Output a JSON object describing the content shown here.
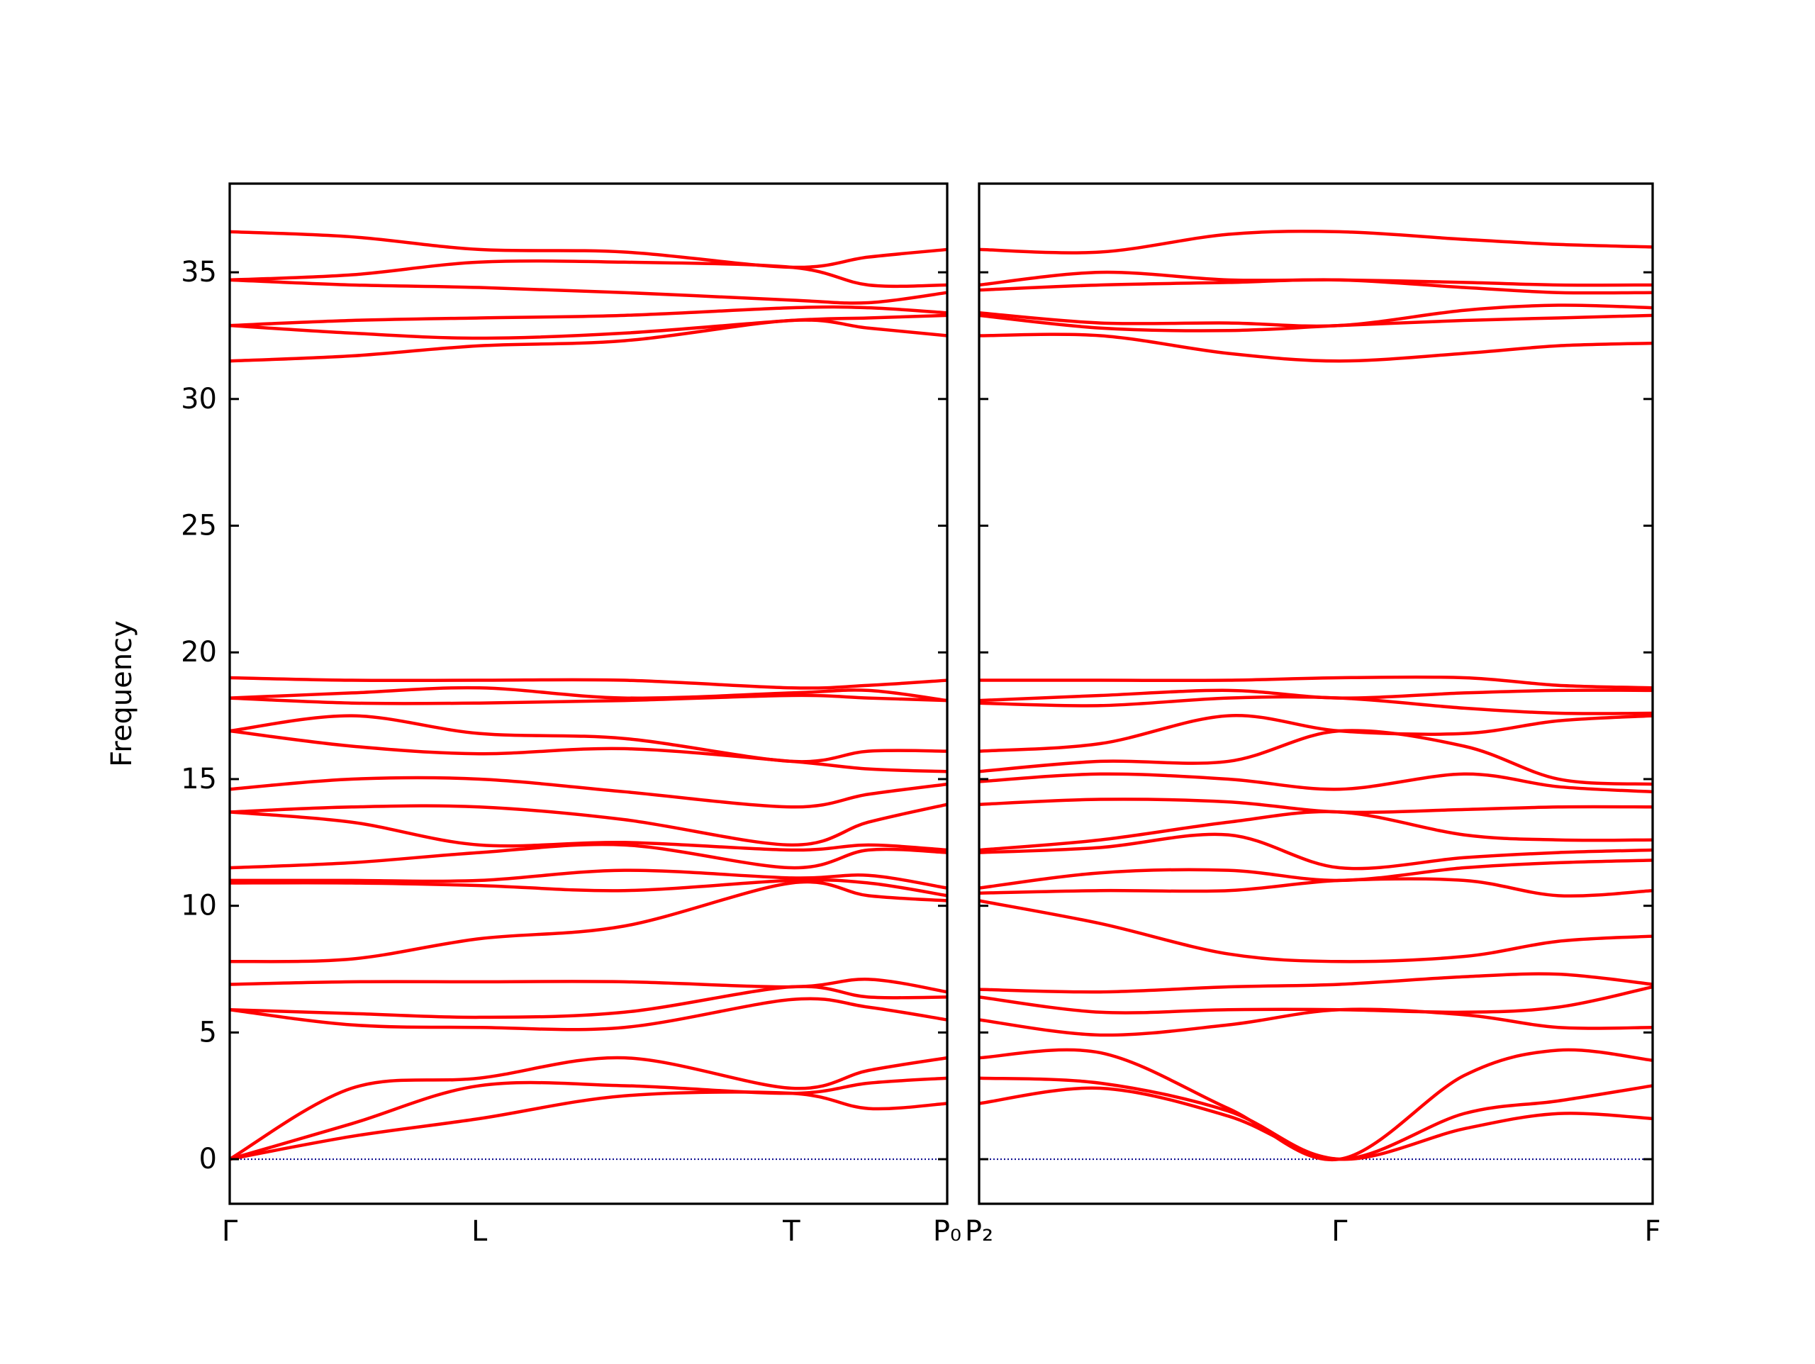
{
  "chart_data": [
    {
      "type": "line",
      "ylabel": "Frequency",
      "color": "#ff0000",
      "xlim": [
        0,
        1
      ],
      "xticks": [
        {
          "value": 0,
          "label": "Γ"
        },
        {
          "value": 0.348,
          "label": "L"
        },
        {
          "value": 0.783,
          "label": "T"
        },
        {
          "value": 1,
          "label": "P₀"
        }
      ],
      "ylim": [
        -1.76,
        38.5
      ],
      "yticks": [
        0,
        5,
        10,
        15,
        20,
        25,
        30,
        35
      ],
      "show_ytick_labels": true,
      "hlines": [
        0
      ],
      "hline_color": "#00008b",
      "x": [
        0,
        0.17,
        0.348,
        0.55,
        0.783,
        0.89,
        1
      ],
      "series": [
        {
          "values": [
            0,
            0.9,
            1.6,
            2.5,
            2.6,
            2.0,
            2.2
          ]
        },
        {
          "values": [
            0,
            1.4,
            2.9,
            2.9,
            2.6,
            3.0,
            3.2
          ]
        },
        {
          "values": [
            0,
            2.8,
            3.2,
            4.0,
            2.8,
            3.5,
            4.0
          ]
        },
        {
          "values": [
            5.9,
            5.3,
            5.2,
            5.2,
            6.3,
            6.0,
            5.5
          ]
        },
        {
          "values": [
            5.9,
            5.75,
            5.6,
            5.8,
            6.8,
            6.4,
            6.4
          ]
        },
        {
          "values": [
            6.9,
            7.0,
            7.0,
            7.0,
            6.8,
            7.1,
            6.6
          ]
        },
        {
          "values": [
            7.8,
            7.9,
            8.7,
            9.2,
            10.9,
            10.4,
            10.2
          ]
        },
        {
          "values": [
            10.9,
            10.9,
            10.8,
            10.6,
            11.0,
            10.9,
            10.4
          ]
        },
        {
          "values": [
            11.0,
            11.0,
            11.0,
            11.4,
            11.1,
            11.2,
            10.7
          ]
        },
        {
          "values": [
            11.5,
            11.7,
            12.1,
            12.4,
            11.5,
            12.2,
            12.1
          ]
        },
        {
          "values": [
            13.7,
            13.3,
            12.4,
            12.5,
            12.2,
            12.4,
            12.2
          ]
        },
        {
          "values": [
            13.7,
            13.9,
            13.9,
            13.4,
            12.4,
            13.3,
            14.0
          ]
        },
        {
          "values": [
            14.6,
            15.0,
            15.0,
            14.5,
            13.9,
            14.4,
            14.8
          ]
        },
        {
          "values": [
            16.9,
            16.3,
            16.0,
            16.2,
            15.7,
            15.4,
            15.3
          ]
        },
        {
          "values": [
            16.9,
            17.5,
            16.8,
            16.6,
            15.7,
            16.1,
            16.1
          ]
        },
        {
          "values": [
            18.2,
            18.0,
            18.0,
            18.1,
            18.3,
            18.2,
            18.1
          ]
        },
        {
          "values": [
            18.2,
            18.4,
            18.6,
            18.2,
            18.4,
            18.5,
            18.1
          ]
        },
        {
          "values": [
            19.0,
            18.9,
            18.9,
            18.9,
            18.6,
            18.7,
            18.9
          ]
        },
        {
          "values": [
            31.5,
            31.7,
            32.1,
            32.3,
            33.1,
            32.8,
            32.5
          ]
        },
        {
          "values": [
            32.9,
            32.6,
            32.4,
            32.6,
            33.1,
            33.2,
            33.3
          ]
        },
        {
          "values": [
            32.9,
            33.1,
            33.2,
            33.3,
            33.6,
            33.6,
            33.4
          ]
        },
        {
          "values": [
            34.7,
            34.5,
            34.4,
            34.2,
            33.9,
            33.8,
            34.2
          ]
        },
        {
          "values": [
            34.7,
            34.9,
            35.4,
            35.4,
            35.2,
            34.5,
            34.5
          ]
        },
        {
          "values": [
            36.6,
            36.4,
            35.9,
            35.8,
            35.2,
            35.6,
            35.9
          ]
        }
      ]
    },
    {
      "type": "line",
      "color": "#ff0000",
      "xlim": [
        0,
        1
      ],
      "xticks": [
        {
          "value": 0,
          "label": "P₂"
        },
        {
          "value": 0.535,
          "label": "Γ"
        },
        {
          "value": 1,
          "label": "F"
        }
      ],
      "ylim": [
        -1.76,
        38.5
      ],
      "yticks": [
        0,
        5,
        10,
        15,
        20,
        25,
        30,
        35
      ],
      "show_ytick_labels": false,
      "hlines": [
        0
      ],
      "hline_color": "#00008b",
      "x": [
        0,
        0.18,
        0.37,
        0.535,
        0.72,
        0.86,
        1
      ],
      "series": [
        {
          "values": [
            2.2,
            2.8,
            1.7,
            0,
            1.2,
            1.8,
            1.6
          ]
        },
        {
          "values": [
            3.2,
            3.0,
            1.9,
            0,
            1.8,
            2.3,
            2.9
          ]
        },
        {
          "values": [
            4.0,
            4.2,
            2.0,
            0,
            3.3,
            4.3,
            3.9
          ]
        },
        {
          "values": [
            5.5,
            4.9,
            5.3,
            5.9,
            5.7,
            5.2,
            5.2
          ]
        },
        {
          "values": [
            6.4,
            5.8,
            5.9,
            5.9,
            5.8,
            6.0,
            6.8
          ]
        },
        {
          "values": [
            6.7,
            6.6,
            6.8,
            6.9,
            7.2,
            7.3,
            6.9
          ]
        },
        {
          "values": [
            10.2,
            9.3,
            8.1,
            7.8,
            8.0,
            8.6,
            8.8
          ]
        },
        {
          "values": [
            10.5,
            10.6,
            10.6,
            11.0,
            11.0,
            10.4,
            10.6
          ]
        },
        {
          "values": [
            10.7,
            11.3,
            11.4,
            11.0,
            11.5,
            11.7,
            11.8
          ]
        },
        {
          "values": [
            12.1,
            12.3,
            12.8,
            11.5,
            11.9,
            12.1,
            12.2
          ]
        },
        {
          "values": [
            12.2,
            12.6,
            13.3,
            13.7,
            12.8,
            12.6,
            12.6
          ]
        },
        {
          "values": [
            14.0,
            14.2,
            14.1,
            13.7,
            13.8,
            13.9,
            13.9
          ]
        },
        {
          "values": [
            14.9,
            15.2,
            15.0,
            14.6,
            15.2,
            14.7,
            14.5
          ]
        },
        {
          "values": [
            15.3,
            15.7,
            15.7,
            16.9,
            16.3,
            15.0,
            14.8
          ]
        },
        {
          "values": [
            16.1,
            16.4,
            17.5,
            16.9,
            16.8,
            17.3,
            17.5
          ]
        },
        {
          "values": [
            18.0,
            17.9,
            18.2,
            18.2,
            17.8,
            17.6,
            17.6
          ]
        },
        {
          "values": [
            18.1,
            18.3,
            18.5,
            18.2,
            18.4,
            18.5,
            18.5
          ]
        },
        {
          "values": [
            18.9,
            18.9,
            18.9,
            19.0,
            19.0,
            18.7,
            18.6
          ]
        },
        {
          "values": [
            32.5,
            32.5,
            31.8,
            31.5,
            31.8,
            32.1,
            32.2
          ]
        },
        {
          "values": [
            33.3,
            32.8,
            32.7,
            32.9,
            33.1,
            33.2,
            33.3
          ]
        },
        {
          "values": [
            33.4,
            33.0,
            33.0,
            32.9,
            33.5,
            33.7,
            33.6
          ]
        },
        {
          "values": [
            34.3,
            34.5,
            34.6,
            34.7,
            34.4,
            34.2,
            34.2
          ]
        },
        {
          "values": [
            34.5,
            35.0,
            34.7,
            34.7,
            34.6,
            34.5,
            34.5
          ]
        },
        {
          "values": [
            35.9,
            35.8,
            36.5,
            36.6,
            36.3,
            36.1,
            36.0
          ]
        }
      ]
    }
  ]
}
